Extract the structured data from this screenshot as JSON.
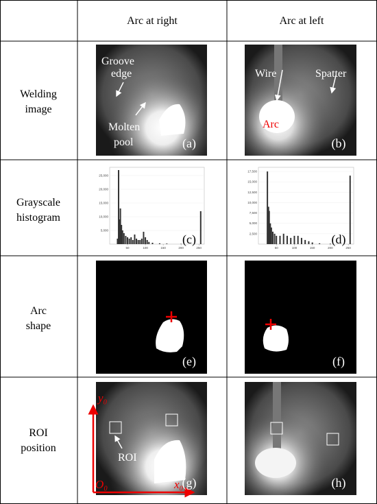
{
  "table": {
    "header": [
      "Arc at right",
      "Arc at left"
    ],
    "row_labels": [
      [
        "Welding",
        "image"
      ],
      [
        "Grayscale",
        "histogram"
      ],
      [
        "Arc",
        "shape"
      ],
      [
        "ROI",
        "position"
      ]
    ]
  },
  "panels": [
    {
      "tag": "(a)",
      "labels": [
        "Groove",
        "edge",
        "Molten",
        "pool"
      ]
    },
    {
      "tag": "(b)",
      "labels": [
        "Wire",
        "Spatter",
        "Arc"
      ]
    },
    {
      "tag": "(c)"
    },
    {
      "tag": "(d)"
    },
    {
      "tag": "(e)"
    },
    {
      "tag": "(f)"
    },
    {
      "tag": "(g)",
      "labels": [
        "ROI",
        "y₀",
        "x₀",
        "O₀"
      ]
    },
    {
      "tag": "(h)"
    }
  ],
  "chart_data": [
    {
      "type": "bar",
      "color": "#333333",
      "x": [
        22,
        25,
        28,
        30,
        33,
        36,
        40,
        45,
        50,
        55,
        60,
        65,
        70,
        75,
        80,
        85,
        90,
        95,
        100,
        105,
        110,
        120,
        140,
        160,
        200,
        255
      ],
      "values": [
        2000,
        27000,
        9000,
        13000,
        7000,
        5000,
        4000,
        3000,
        2500,
        2000,
        2500,
        1500,
        3500,
        2000,
        1500,
        1500,
        2000,
        4500,
        2500,
        1500,
        800,
        500,
        300,
        200,
        100,
        12000
      ],
      "xlim": [
        0,
        265
      ],
      "ylim": [
        0,
        28000
      ],
      "xticks": [
        50,
        100,
        150,
        200,
        250
      ],
      "yticks": [
        {
          "value": 5000,
          "label": "5,000"
        },
        {
          "value": 10000,
          "label": "10,000"
        },
        {
          "value": 15000,
          "label": "15,000"
        },
        {
          "value": 20000,
          "label": "20,000"
        },
        {
          "value": 25000,
          "label": "25,000"
        }
      ]
    },
    {
      "type": "bar",
      "color": "#333333",
      "x": [
        25,
        28,
        30,
        33,
        36,
        40,
        45,
        50,
        60,
        70,
        80,
        90,
        100,
        110,
        120,
        130,
        140,
        150,
        170,
        200,
        255
      ],
      "values": [
        17500,
        9000,
        8000,
        5000,
        4000,
        3000,
        2500,
        2000,
        2000,
        2500,
        2000,
        1500,
        2000,
        2000,
        1500,
        1000,
        700,
        400,
        200,
        100,
        16500
      ],
      "xlim": [
        0,
        265
      ],
      "ylim": [
        0,
        18500
      ],
      "xticks": [
        50,
        100,
        150,
        200,
        250
      ],
      "yticks": [
        {
          "value": 2500,
          "label": "2,500"
        },
        {
          "value": 5000,
          "label": "5,000"
        },
        {
          "value": 7500,
          "label": "7,500"
        },
        {
          "value": 10000,
          "label": "10,000"
        },
        {
          "value": 12500,
          "label": "12,500"
        },
        {
          "value": 15000,
          "label": "15,000"
        },
        {
          "value": 17500,
          "label": "17,500"
        }
      ]
    }
  ]
}
